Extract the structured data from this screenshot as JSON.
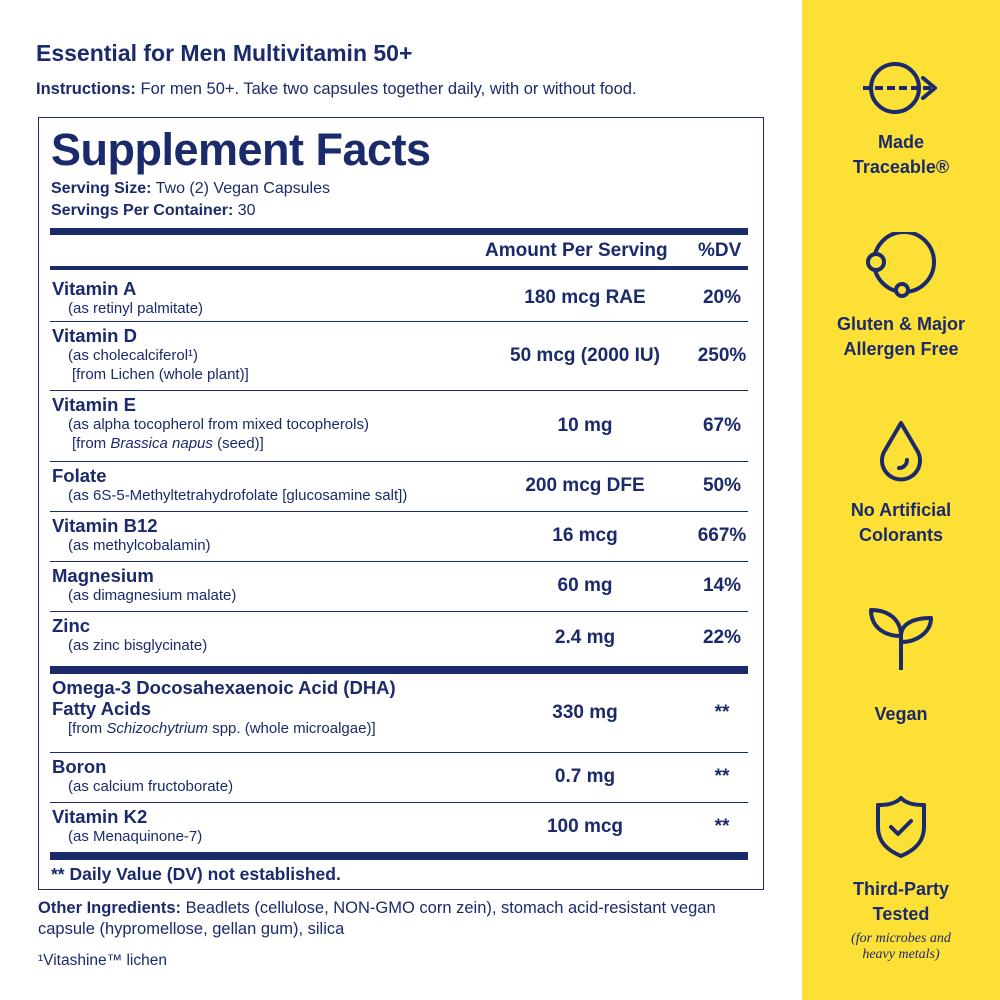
{
  "product_title": "Essential for Men Multivitamin 50+",
  "instructions": {
    "label": "Instructions:",
    "text": " For men 50+. Take two capsules together daily, with or without food."
  },
  "facts": {
    "heading": "Supplement Facts",
    "serving_size": {
      "label": "Serving Size:",
      "value": " Two (2) Vegan Capsules"
    },
    "servings_per_container": {
      "label": "Servings Per Container:",
      "value": " 30"
    },
    "col_amount": "Amount Per Serving",
    "col_dv": "%DV",
    "rows": [
      {
        "name": "Vitamin A",
        "sub": [
          "(as retinyl palmitate)"
        ],
        "amount": "180 mcg RAE",
        "dv": "20%"
      },
      {
        "name": "Vitamin D",
        "sub": [
          "(as cholecalciferol¹)",
          "[from Lichen (whole plant)]"
        ],
        "amount": "50 mcg (2000 IU)",
        "dv": "250%"
      },
      {
        "name": "Vitamin E",
        "sub": [
          "(as alpha tocopherol from mixed tocopherols)",
          "[from Brassica napus (seed)]"
        ],
        "amount": "10 mg",
        "dv": "67%"
      },
      {
        "name": "Folate",
        "sub": [
          "(as 6S-5-Methyltetrahydrofolate [glucosamine salt])"
        ],
        "amount": "200 mcg DFE",
        "dv": "50%"
      },
      {
        "name": "Vitamin B12",
        "sub": [
          "(as methylcobalamin)"
        ],
        "amount": "16 mcg",
        "dv": "667%"
      },
      {
        "name": "Magnesium",
        "sub": [
          "(as dimagnesium malate)"
        ],
        "amount": "60 mg",
        "dv": "14%"
      },
      {
        "name": "Zinc",
        "sub": [
          "(as zinc bisglycinate)"
        ],
        "amount": "2.4 mg",
        "dv": "22%"
      }
    ],
    "rows2": [
      {
        "name": "Omega-3 Docosahexaenoic Acid (DHA)",
        "name2": "Fatty Acids",
        "sub": [
          "[from Schizochytrium spp. (whole microalgae)]"
        ],
        "amount": "330 mg",
        "dv": "**"
      },
      {
        "name": "Boron",
        "sub": [
          "(as calcium fructoborate)"
        ],
        "amount": "0.7 mg",
        "dv": "**"
      },
      {
        "name": "Vitamin K2",
        "sub": [
          "(as Menaquinone-7)"
        ],
        "amount": "100 mcg",
        "dv": "**"
      }
    ],
    "footnote": "** Daily Value (DV) not established."
  },
  "other_ingredients": {
    "label": "Other Ingredients:",
    "text": " Beadlets (cellulose, NON-GMO corn zein), stomach acid-resistant vegan capsule (hypromellose, gellan gum), silica"
  },
  "vitashine_note": "¹Vitashine™ lichen",
  "badges": [
    {
      "icon": "traceable-arrow-icon",
      "line1": "Made",
      "line2": "Traceable®"
    },
    {
      "icon": "allergen-free-icon",
      "line1": "Gluten & Major",
      "line2": "Allergen Free"
    },
    {
      "icon": "droplet-icon",
      "line1": "No Artificial",
      "line2": "Colorants"
    },
    {
      "icon": "sprout-icon",
      "line1": "Vegan"
    },
    {
      "icon": "shield-check-icon",
      "line1": "Third-Party",
      "line2": "Tested",
      "note1": "(for microbes and",
      "note2": "heavy metals)"
    }
  ],
  "colors": {
    "navy": "#1b2a6b",
    "yellow": "#fde035"
  }
}
